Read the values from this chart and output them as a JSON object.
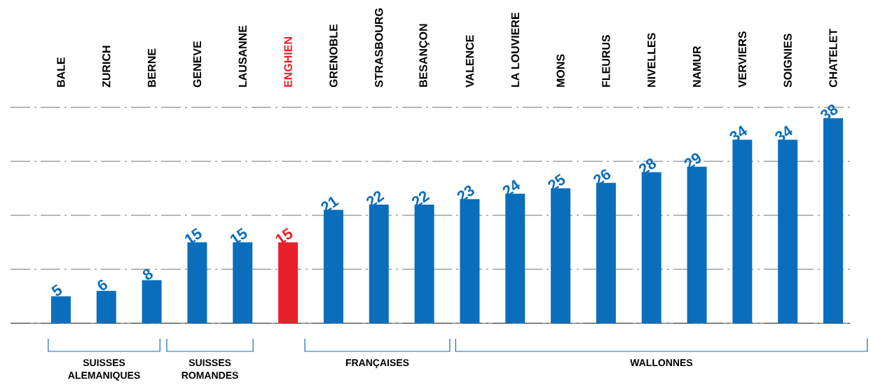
{
  "chart_data": {
    "type": "bar",
    "categories": [
      "BALE",
      "ZURICH",
      "BERNE",
      "GENEVE",
      "LAUSANNE",
      "ENGHIEN",
      "GRENOBLE",
      "STRASBOURG",
      "BESANÇON",
      "VALENCE",
      "LA LOUVIERE",
      "MONS",
      "FLEURUS",
      "NIVELLES",
      "NAMUR",
      "VERVIERS",
      "SOIGNIES",
      "CHATELET"
    ],
    "values": [
      5,
      6,
      8,
      15,
      15,
      15,
      21,
      22,
      22,
      23,
      24,
      25,
      26,
      28,
      29,
      34,
      34,
      38
    ],
    "colors": [
      "#0a6ebd",
      "#0a6ebd",
      "#0a6ebd",
      "#0a6ebd",
      "#0a6ebd",
      "#e8202a",
      "#0a6ebd",
      "#0a6ebd",
      "#0a6ebd",
      "#0a6ebd",
      "#0a6ebd",
      "#0a6ebd",
      "#0a6ebd",
      "#0a6ebd",
      "#0a6ebd",
      "#0a6ebd",
      "#0a6ebd",
      "#0a6ebd"
    ],
    "data_labels": true,
    "grid": "y",
    "tick_labels": "x",
    "annotations": [
      "SUISSES ALEMANIQUES",
      "SUISSES ROMANDES",
      "FRANÇAISES",
      "WALLONNES"
    ]
  }
}
